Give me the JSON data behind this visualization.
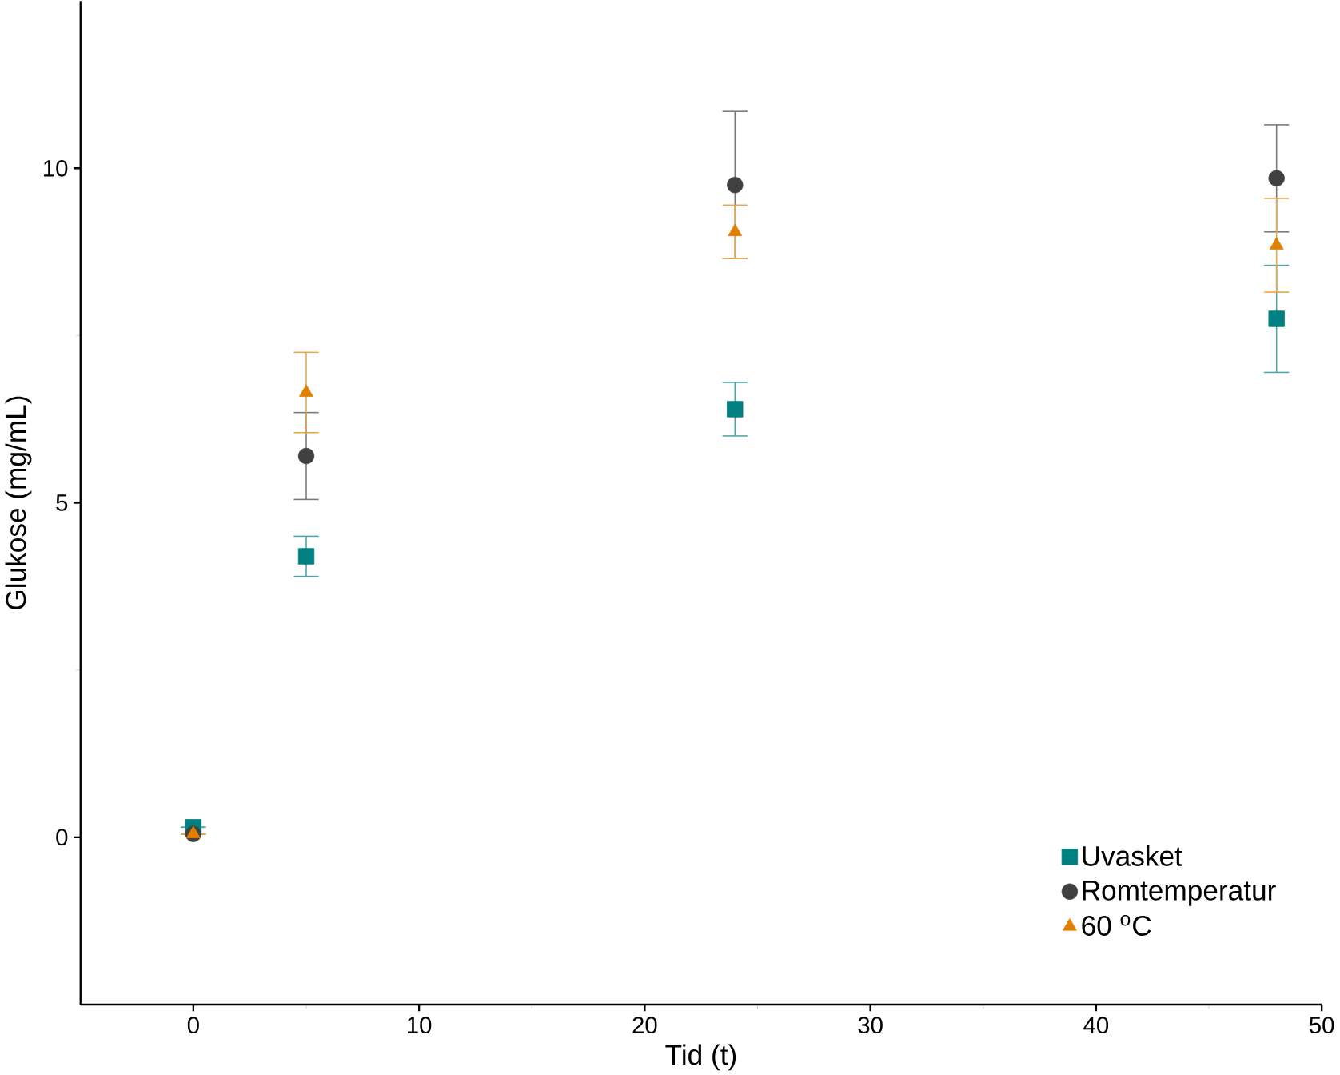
{
  "chart_data": {
    "type": "scatter",
    "xlabel": "Tid (t)",
    "ylabel": "Glukose (mg/mL)",
    "x": [
      0,
      5,
      24,
      48
    ],
    "xlim": [
      -5,
      50
    ],
    "ylim": [
      -2.5,
      12.5
    ],
    "xticks": [
      0,
      10,
      20,
      30,
      40,
      50
    ],
    "yticks": [
      0,
      5,
      10
    ],
    "grid": false,
    "legend": "bottom right",
    "series": [
      {
        "name": "Uvasket",
        "color": "#008080",
        "marker": "square",
        "values": [
          0.15,
          4.2,
          6.4,
          7.75
        ],
        "errors": [
          null,
          0.3,
          0.4,
          0.8
        ]
      },
      {
        "name": "Romtemperatur",
        "color": "#404040",
        "marker": "circle",
        "values": [
          0.05,
          5.7,
          9.75,
          9.85
        ],
        "errors": [
          null,
          0.65,
          1.1,
          0.8
        ]
      },
      {
        "name": "60 $^{o}$C",
        "color": "#e08000",
        "marker": "triangle",
        "values": [
          0.05,
          6.65,
          9.05,
          8.85
        ],
        "errors": [
          null,
          0.6,
          0.4,
          0.7
        ]
      }
    ]
  }
}
